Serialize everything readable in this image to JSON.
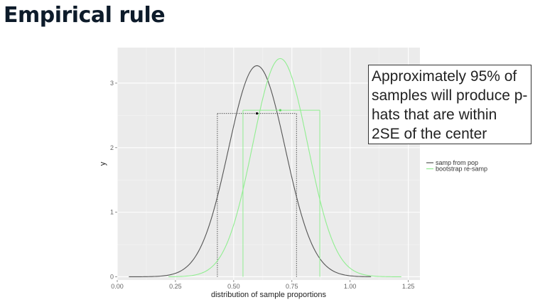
{
  "slide": {
    "title": "Empirical rule"
  },
  "callout": {
    "text": "Approximately 95% of samples will produce p-hats that are within 2SE of the center"
  },
  "chart_data": {
    "type": "line",
    "title": "",
    "xlabel": "distribution of sample proportions",
    "ylabel": "y",
    "xlim": [
      0.0,
      1.3
    ],
    "ylim": [
      -0.05,
      3.55
    ],
    "x_ticks": [
      0.0,
      0.25,
      0.5,
      0.75,
      1.0,
      1.25
    ],
    "x_tick_labels": [
      "0.00",
      "0.25",
      "0.50",
      "0.75",
      "1.00",
      "1.25"
    ],
    "y_ticks": [
      0,
      1,
      2,
      3
    ],
    "y_tick_labels": [
      "0",
      "1",
      "2",
      "3"
    ],
    "background": "#ebebeb",
    "grid": true,
    "legend_position": "right",
    "series": [
      {
        "name": "samp from pop",
        "color": "#555555",
        "curve": {
          "mean": 0.6,
          "sd": 0.122,
          "x_range": [
            0.05,
            1.09
          ]
        },
        "interval": [
          0.43,
          0.77
        ],
        "bracket_height": 2.53,
        "center_point": [
          0.6,
          2.53
        ]
      },
      {
        "name": "bootstrap re-samp",
        "color": "#90ee90",
        "curve": {
          "mean": 0.7,
          "sd": 0.118,
          "x_range": [
            0.22,
            1.22
          ]
        },
        "interval": [
          0.54,
          0.87
        ],
        "bracket_height": 2.58,
        "center_point": [
          0.7,
          2.58
        ]
      }
    ]
  }
}
